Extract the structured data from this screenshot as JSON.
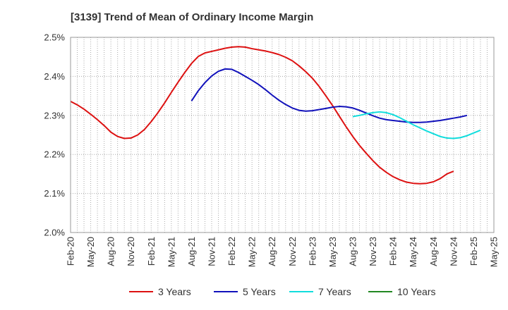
{
  "chart_data": {
    "type": "line",
    "title": "[3139]  Trend of Mean of Ordinary Income Margin",
    "xlabel": "",
    "ylabel": "",
    "ylim": [
      2.0,
      2.5
    ],
    "y_ticks": [
      "2.0%",
      "2.1%",
      "2.2%",
      "2.3%",
      "2.4%",
      "2.5%"
    ],
    "x_ticks": [
      "Feb-20",
      "May-20",
      "Aug-20",
      "Nov-20",
      "Feb-21",
      "May-21",
      "Aug-21",
      "Nov-21",
      "Feb-22",
      "May-22",
      "Aug-22",
      "Nov-22",
      "Feb-23",
      "May-23",
      "Aug-23",
      "Nov-23",
      "Feb-24",
      "May-24",
      "Aug-24",
      "Nov-24",
      "Feb-25",
      "May-25"
    ],
    "x_start": "Feb-20",
    "x_end": "May-25",
    "grid": true,
    "legend_position": "bottom",
    "series": [
      {
        "name": "3 Years",
        "color": "#dd1111",
        "start": "Feb-20",
        "values": [
          2.336,
          2.327,
          2.316,
          2.303,
          2.289,
          2.274,
          2.257,
          2.246,
          2.241,
          2.242,
          2.25,
          2.264,
          2.284,
          2.307,
          2.332,
          2.359,
          2.385,
          2.41,
          2.433,
          2.451,
          2.46,
          2.464,
          2.468,
          2.472,
          2.475,
          2.476,
          2.475,
          2.471,
          2.468,
          2.465,
          2.461,
          2.456,
          2.449,
          2.44,
          2.427,
          2.412,
          2.395,
          2.374,
          2.35,
          2.325,
          2.298,
          2.271,
          2.246,
          2.223,
          2.203,
          2.184,
          2.167,
          2.154,
          2.143,
          2.135,
          2.129,
          2.126,
          2.125,
          2.126,
          2.13,
          2.138,
          2.15,
          2.157
        ]
      },
      {
        "name": "5 Years",
        "color": "#1111bb",
        "start": "Aug-21",
        "values": [
          2.337,
          2.363,
          2.384,
          2.401,
          2.413,
          2.419,
          2.418,
          2.41,
          2.4,
          2.39,
          2.379,
          2.366,
          2.352,
          2.339,
          2.328,
          2.319,
          2.313,
          2.311,
          2.312,
          2.315,
          2.318,
          2.321,
          2.323,
          2.322,
          2.319,
          2.313,
          2.306,
          2.299,
          2.293,
          2.289,
          2.287,
          2.285,
          2.283,
          2.282,
          2.282,
          2.283,
          2.285,
          2.287,
          2.29,
          2.293,
          2.296,
          2.3
        ]
      },
      {
        "name": "7 Years",
        "color": "#11dddd",
        "start": "Aug-23",
        "values": [
          2.297,
          2.3,
          2.304,
          2.307,
          2.309,
          2.307,
          2.302,
          2.294,
          2.285,
          2.276,
          2.268,
          2.26,
          2.253,
          2.246,
          2.242,
          2.241,
          2.243,
          2.248,
          2.255,
          2.262
        ]
      },
      {
        "name": "10 Years",
        "color": "#228822",
        "start": "Feb-25",
        "values": []
      }
    ]
  }
}
